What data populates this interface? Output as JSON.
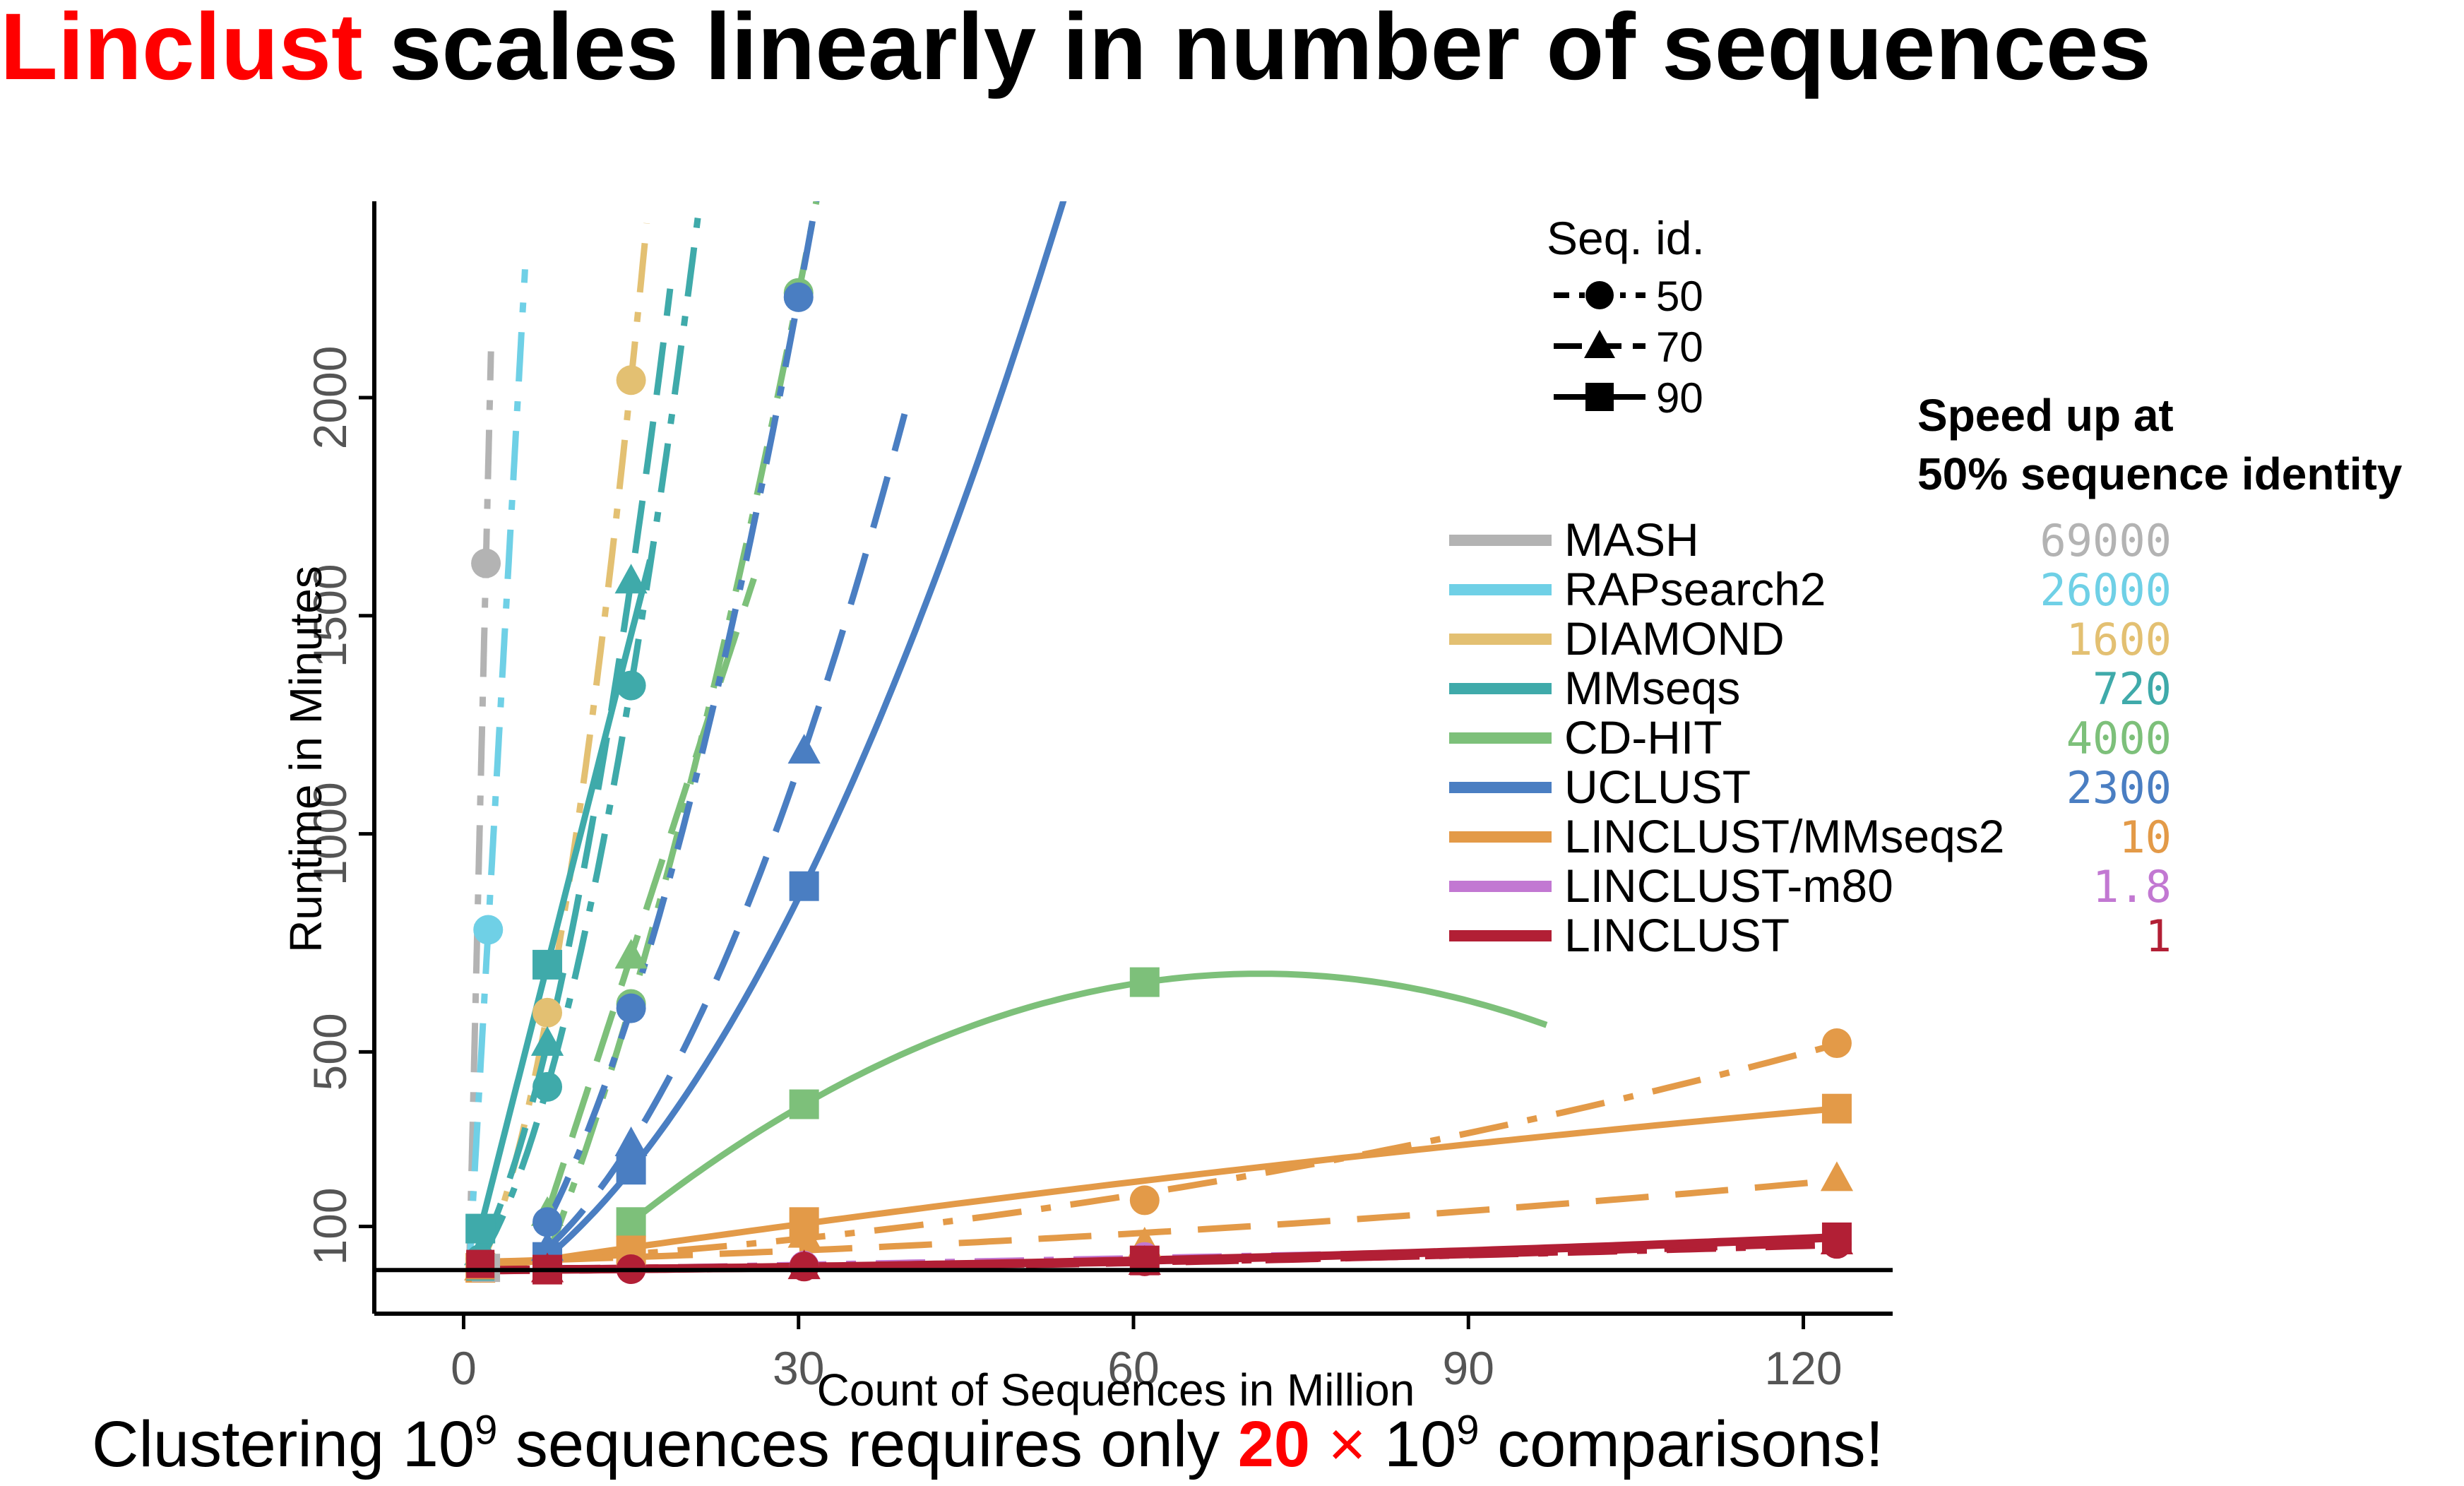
{
  "title": {
    "highlight": "Linclust",
    "rest": " scales linearly in number of sequences"
  },
  "footer": {
    "part1": "Clustering 10",
    "exp1": "9",
    "part2": " sequences requires only ",
    "highlight_num": "20",
    "times": " × ",
    "part3": "10",
    "exp2": "9",
    "part4": " comparisons!"
  },
  "chart_data": {
    "type": "line",
    "title": "",
    "xlabel": "Count of Sequences in Million",
    "ylabel": "Runtime in Minutes",
    "xlim": [
      -8,
      128
    ],
    "ylim": [
      -100,
      2450
    ],
    "xticks": [
      0,
      30,
      60,
      90,
      120
    ],
    "yticks": [
      100,
      500,
      1000,
      1500,
      2000
    ],
    "seqid_legend": {
      "title": "Seq. id.",
      "entries": [
        {
          "label": "50",
          "marker": "circle",
          "dash": "dotdash"
        },
        {
          "label": "70",
          "marker": "triangle",
          "dash": "dashed"
        },
        {
          "label": "90",
          "marker": "square",
          "dash": "solid"
        }
      ]
    },
    "speedup_title": [
      "Speed up at",
      "50% sequence identity"
    ],
    "methods": [
      {
        "name": "MASH",
        "color": "#b3b3b3",
        "speedup": "69000",
        "curves": [
          {
            "id": 50,
            "marker": "circle",
            "points": [
              [
                0.5,
                0
              ],
              [
                2,
                1620
              ]
            ],
            "extend_to": 2.45
          }
        ]
      },
      {
        "name": "RAPsearch2",
        "color": "#6fd0e6",
        "speedup": "26000",
        "curves": [
          {
            "id": 50,
            "marker": "circle",
            "points": [
              [
                0.5,
                0
              ],
              [
                2.2,
                780
              ]
            ],
            "extend_to": 5.5
          }
        ]
      },
      {
        "name": "DIAMOND",
        "color": "#e3c072",
        "speedup": "1600",
        "curves": [
          {
            "id": 50,
            "marker": "circle",
            "points": [
              [
                1.5,
                10
              ],
              [
                7.5,
                590
              ],
              [
                15,
                2040
              ]
            ],
            "extend_to": 16.4
          }
        ]
      },
      {
        "name": "MMseqs",
        "color": "#3faaaa",
        "speedup": "720",
        "curves": [
          {
            "id": 50,
            "marker": "circle",
            "points": [
              [
                1.5,
                25
              ],
              [
                7.5,
                420
              ],
              [
                15,
                1340
              ]
            ],
            "extend_to": 21.5
          },
          {
            "id": 70,
            "marker": "triangle",
            "points": [
              [
                1.5,
                40
              ],
              [
                7.5,
                520
              ],
              [
                15,
                1580
              ]
            ],
            "extend_to": 18.5
          },
          {
            "id": 90,
            "marker": "square",
            "points": [
              [
                1.5,
                95
              ],
              [
                7.5,
                700
              ]
            ],
            "extend_to": 16.7
          }
        ]
      },
      {
        "name": "CD-HIT",
        "color": "#7dc07a",
        "speedup": "4000",
        "curves": [
          {
            "id": 50,
            "marker": "circle",
            "points": [
              [
                7.5,
                30
              ],
              [
                15,
                610
              ],
              [
                30,
                2240
              ]
            ],
            "extend_to": 31.8
          },
          {
            "id": 70,
            "marker": "triangle",
            "points": [
              [
                7.5,
                130
              ],
              [
                15,
                720
              ]
            ],
            "extend_to": 26
          },
          {
            "id": 90,
            "marker": "square",
            "points": [
              [
                15,
                110
              ],
              [
                30.5,
                380
              ],
              [
                61,
                660
              ]
            ],
            "extend_to": 97
          }
        ]
      },
      {
        "name": "UCLUST",
        "color": "#4a7ec2",
        "speedup": "2300",
        "curves": [
          {
            "id": 50,
            "marker": "circle",
            "points": [
              [
                7.5,
                110
              ],
              [
                15,
                600
              ],
              [
                30,
                2230
              ]
            ],
            "extend_to": 35.5
          },
          {
            "id": 70,
            "marker": "triangle",
            "points": [
              [
                7.5,
                50
              ],
              [
                15,
                290
              ],
              [
                30.5,
                1190
              ]
            ],
            "extend_to": 39.5
          },
          {
            "id": 90,
            "marker": "square",
            "points": [
              [
                7.5,
                30
              ],
              [
                15,
                230
              ],
              [
                30.5,
                880
              ]
            ],
            "extend_to": 59
          }
        ]
      },
      {
        "name": "LINCLUST/MMseqs2",
        "color": "#e39a48",
        "speedup": "10",
        "curves": [
          {
            "id": 50,
            "marker": "circle",
            "points": [
              [
                1.5,
                5
              ],
              [
                30.5,
                95
              ],
              [
                61,
                160
              ],
              [
                123,
                520
              ]
            ],
            "extend_to": 123
          },
          {
            "id": 70,
            "marker": "triangle",
            "points": [
              [
                1.5,
                5
              ],
              [
                30.5,
                80
              ],
              [
                61,
                60
              ],
              [
                123,
                210
              ]
            ],
            "extend_to": 123
          },
          {
            "id": 90,
            "marker": "square",
            "points": [
              [
                1.5,
                5
              ],
              [
                15,
                45
              ],
              [
                30.5,
                110
              ],
              [
                123,
                370
              ]
            ],
            "extend_to": 123
          }
        ]
      },
      {
        "name": "LINCLUST-m80",
        "color": "#c278d2",
        "speedup": "1.8",
        "curves": [
          {
            "id": 50,
            "marker": "circle",
            "points": [
              [
                1.5,
                0
              ],
              [
                15,
                2
              ],
              [
                30.5,
                10
              ],
              [
                61,
                30
              ],
              [
                123,
                60
              ]
            ],
            "extend_to": 123
          }
        ]
      },
      {
        "name": "LINCLUST",
        "color": "#b21f35",
        "speedup": "1",
        "curves": [
          {
            "id": 50,
            "marker": "circle",
            "points": [
              [
                1.5,
                0
              ],
              [
                15,
                2
              ],
              [
                30.5,
                8
              ],
              [
                61,
                20
              ],
              [
                123,
                60
              ]
            ],
            "extend_to": 123
          },
          {
            "id": 70,
            "marker": "triangle",
            "points": [
              [
                7.5,
                1
              ],
              [
                30.5,
                8
              ],
              [
                61,
                18
              ],
              [
                123,
                65
              ]
            ],
            "extend_to": 123
          },
          {
            "id": 90,
            "marker": "square",
            "points": [
              [
                7.5,
                1
              ],
              [
                61,
                22
              ],
              [
                123,
                75
              ]
            ],
            "extend_to": 123
          }
        ]
      }
    ]
  }
}
